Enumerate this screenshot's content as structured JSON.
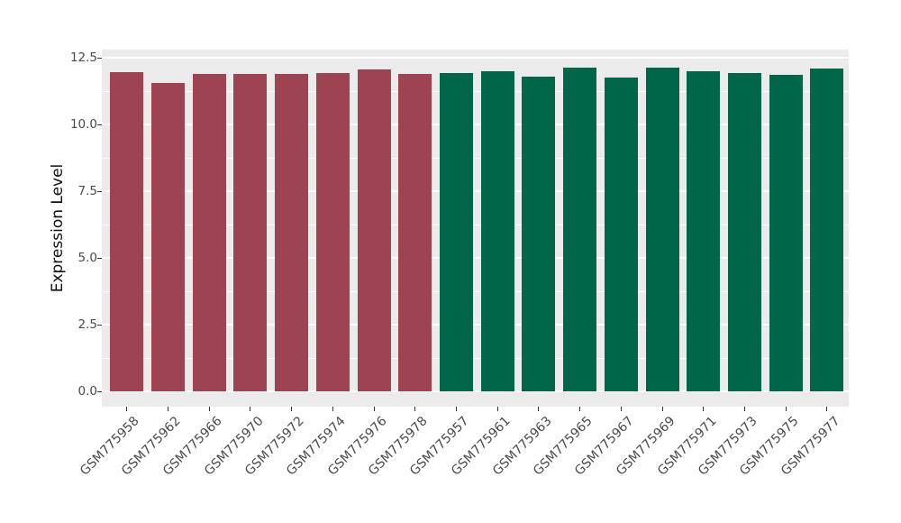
{
  "figure": {
    "background": "#FFFFFF",
    "colors": {
      "panel_bg": "#EBEBEB",
      "grid": "#FFFFFF",
      "bar_red": "#9E4352",
      "bar_green": "#006649",
      "tick_mark": "#333333",
      "tick_text": "#4A4A4A",
      "axis_title_text": "#111111"
    }
  },
  "chart_data": {
    "type": "bar",
    "title": "",
    "xlabel": "",
    "ylabel": "Expression Level",
    "ylim": [
      0,
      12.8
    ],
    "yticks": [
      0.0,
      2.5,
      5.0,
      7.5,
      10.0,
      12.5
    ],
    "ytick_labels": [
      "0.0",
      "2.5",
      "5.0",
      "7.5",
      "10.0",
      "12.5"
    ],
    "yminor_ticks": [
      1.25,
      3.75,
      6.25,
      8.75,
      11.25
    ],
    "grid": true,
    "legend": false,
    "categories": [
      "GSM775958",
      "GSM775962",
      "GSM775966",
      "GSM775970",
      "GSM775972",
      "GSM775974",
      "GSM775976",
      "GSM775978",
      "GSM775957",
      "GSM775961",
      "GSM775963",
      "GSM775965",
      "GSM775967",
      "GSM775969",
      "GSM775971",
      "GSM775973",
      "GSM775975",
      "GSM775977"
    ],
    "values": [
      11.95,
      11.55,
      11.88,
      11.88,
      11.9,
      11.92,
      12.05,
      11.9,
      11.93,
      11.98,
      11.78,
      12.13,
      11.76,
      12.14,
      11.98,
      11.91,
      11.86,
      12.11
    ],
    "color_groups": [
      "red",
      "red",
      "red",
      "red",
      "red",
      "red",
      "red",
      "red",
      "green",
      "green",
      "green",
      "green",
      "green",
      "green",
      "green",
      "green",
      "green",
      "green"
    ],
    "group_colors": {
      "red": "#9E4352",
      "green": "#006649"
    }
  }
}
